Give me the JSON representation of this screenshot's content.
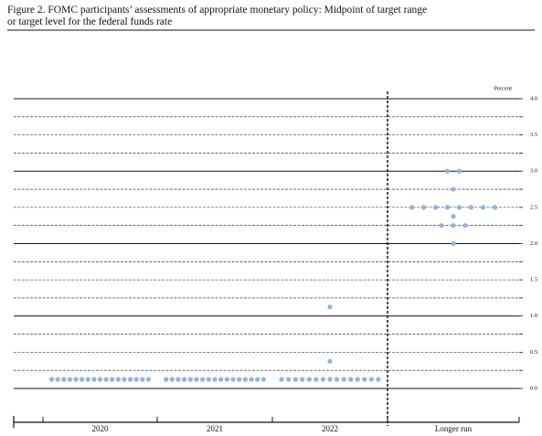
{
  "chart_data": {
    "type": "dot",
    "title": "Figure 2.  FOMC participants’ assessments of appropriate monetary policy:  Midpoint of target range",
    "subtitle": "or target level for the federal funds rate",
    "y_label": "Percent",
    "categories": [
      "2020",
      "2021",
      "2022",
      "Longer run"
    ],
    "values": [
      [
        0.125,
        0.125,
        0.125,
        0.125,
        0.125,
        0.125,
        0.125,
        0.125,
        0.125,
        0.125,
        0.125,
        0.125,
        0.125,
        0.125,
        0.125,
        0.125,
        0.125
      ],
      [
        0.125,
        0.125,
        0.125,
        0.125,
        0.125,
        0.125,
        0.125,
        0.125,
        0.125,
        0.125,
        0.125,
        0.125,
        0.125,
        0.125,
        0.125,
        0.125,
        0.125
      ],
      [
        0.125,
        0.125,
        0.125,
        0.125,
        0.125,
        0.125,
        0.125,
        0.125,
        0.125,
        0.125,
        0.125,
        0.125,
        0.125,
        0.125,
        0.125,
        0.375,
        1.125
      ],
      [
        3.0,
        3.0,
        2.75,
        2.5,
        2.5,
        2.5,
        2.5,
        2.5,
        2.5,
        2.5,
        2.5,
        2.375,
        2.25,
        2.25,
        2.25,
        2.0
      ]
    ],
    "color": "#8fb4dc",
    "ylim": [
      0,
      4
    ],
    "yticks": [
      {
        "value": 0,
        "label": "0.0"
      },
      0.5,
      {
        "value": 1,
        "label": "1.0"
      },
      1.5,
      {
        "value": 2,
        "label": "2.0"
      },
      2.5,
      {
        "value": 3,
        "label": "3.0"
      },
      3.5,
      {
        "value": 4,
        "label": "4.0"
      }
    ],
    "grid": true
  }
}
